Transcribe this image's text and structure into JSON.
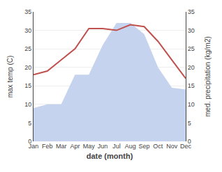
{
  "chart_data": {
    "type": "line",
    "xlabel": "date (month)",
    "ylabel": "max temp (C)",
    "y2label": "med. precipitation (kg/m2)",
    "categories": [
      "Jan",
      "Feb",
      "Mar",
      "Apr",
      "May",
      "Jun",
      "Jul",
      "Aug",
      "Sep",
      "Oct",
      "Nov",
      "Dec"
    ],
    "series": [
      {
        "type": "area",
        "axis": "y2",
        "color": "#c5d3ef",
        "values": [
          9,
          10,
          10,
          18,
          18,
          26,
          32,
          32,
          29,
          20,
          14.5,
          14
        ]
      },
      {
        "type": "line",
        "axis": "y",
        "color": "#c0504d",
        "values": [
          18,
          19,
          22,
          25,
          30.5,
          30.5,
          30,
          31.5,
          31,
          27,
          22,
          17
        ]
      }
    ],
    "ylim": [
      0,
      35
    ],
    "yticks": [
      0,
      5,
      10,
      15,
      20,
      25,
      30,
      35
    ],
    "y2lim": [
      0,
      35
    ],
    "y2ticks": [
      0,
      5,
      10,
      15,
      20,
      25,
      30,
      35
    ],
    "grid": true
  }
}
